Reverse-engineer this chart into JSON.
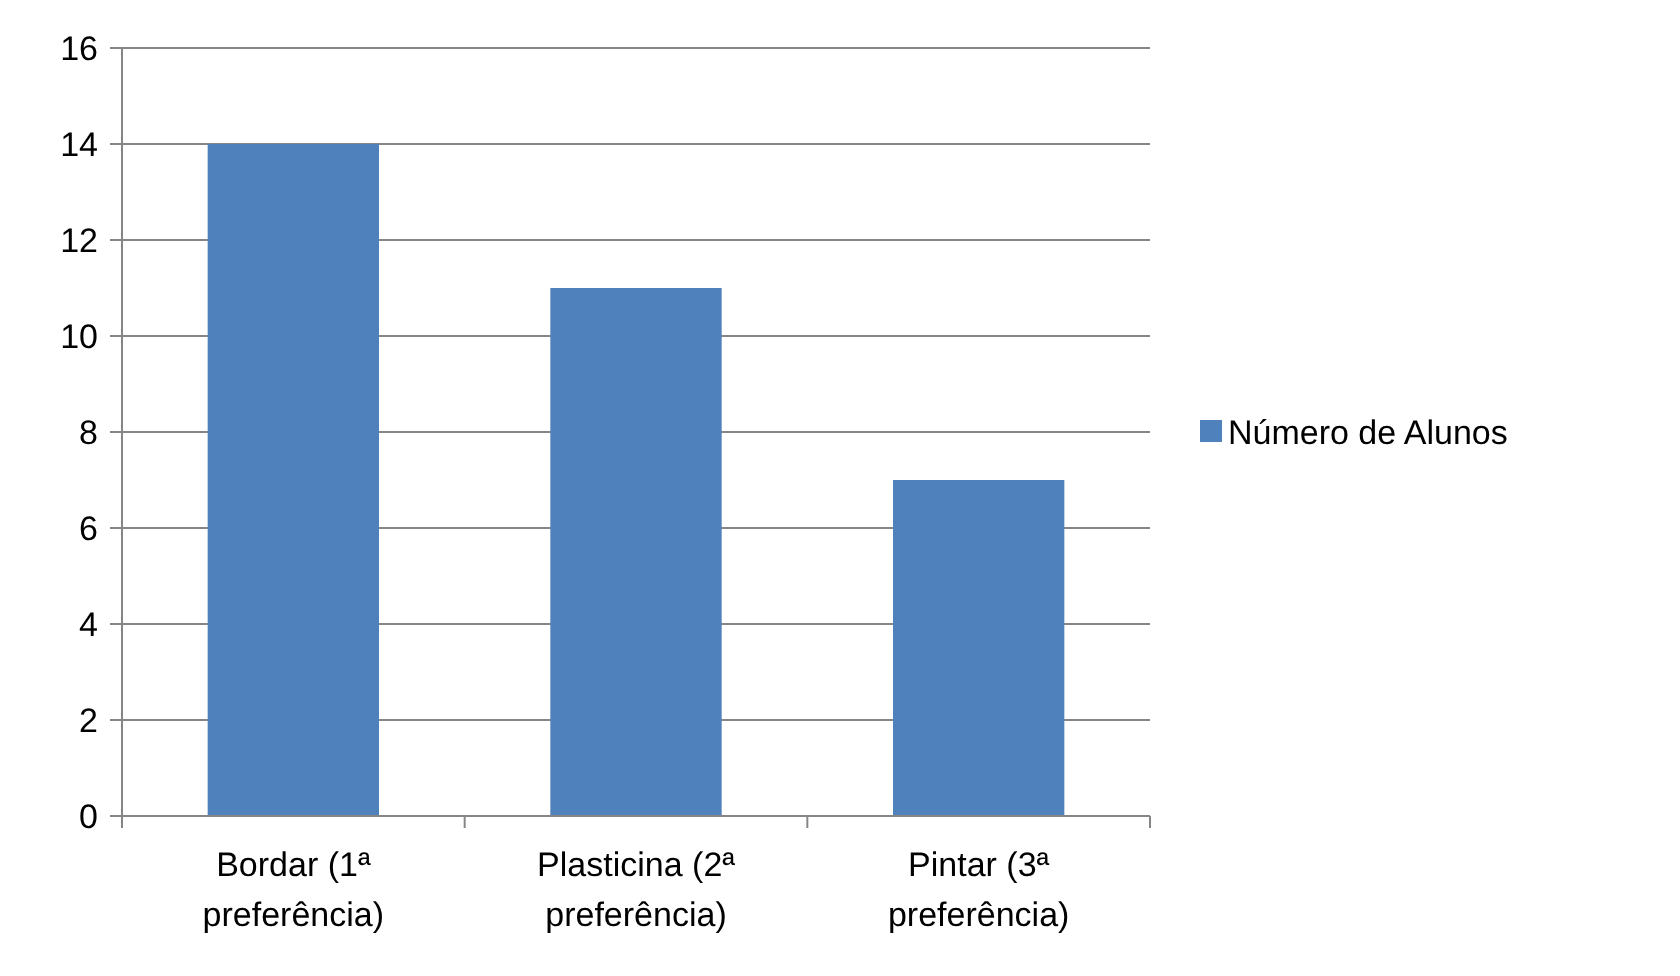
{
  "chart_data": {
    "type": "bar",
    "categories": [
      "Bordar (1ª preferência)",
      "Plasticina (2ª preferência)",
      "Pintar (3ª preferência)"
    ],
    "series": [
      {
        "name": "Número de Alunos",
        "color": "#4f81bd",
        "values": [
          14,
          11,
          7
        ]
      }
    ],
    "ylim": [
      0,
      16
    ],
    "yticks": [
      0,
      2,
      4,
      6,
      8,
      10,
      12,
      14,
      16
    ],
    "grid": "y",
    "legend": "right"
  }
}
